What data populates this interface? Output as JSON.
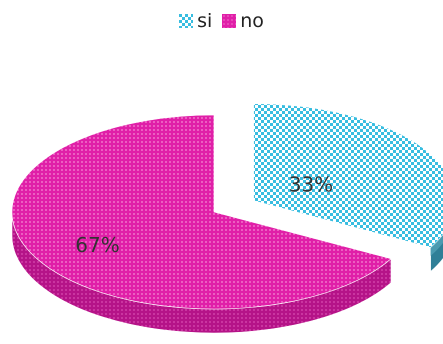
{
  "chart_data": {
    "type": "pie",
    "title": "",
    "legend_position": "top",
    "style": "3d-exploded",
    "categories": [
      "si",
      "no"
    ],
    "values": [
      33,
      67
    ],
    "labels": [
      "33%",
      "67%"
    ],
    "colors": [
      "#38bde0",
      "#e01fa8"
    ],
    "side_colors": [
      "#2f7f97",
      "#b51388"
    ]
  }
}
